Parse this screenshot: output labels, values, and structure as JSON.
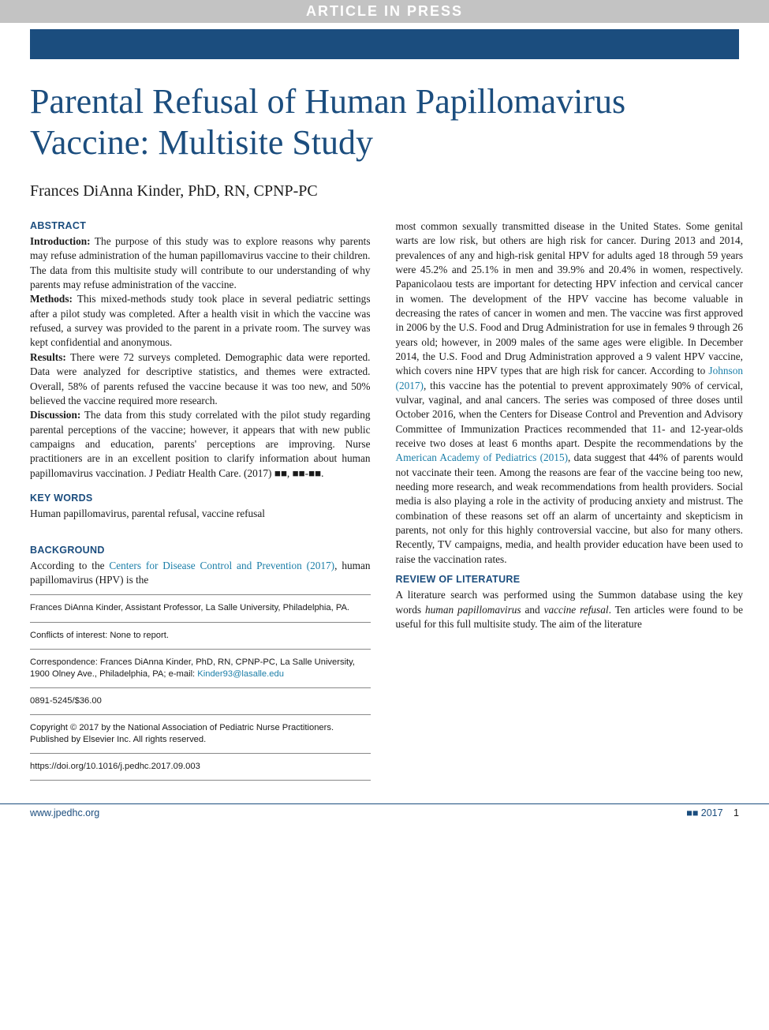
{
  "banner": "ARTICLE IN PRESS",
  "title": "Parental Refusal of Human Papillomavirus Vaccine: Multisite Study",
  "author": "Frances DiAnna Kinder, PhD, RN, CPNP-PC",
  "abstract": {
    "heading": "ABSTRACT",
    "intro_label": "Introduction:",
    "intro": "The purpose of this study was to explore reasons why parents may refuse administration of the human papillomavirus vaccine to their children. The data from this multisite study will contribute to our understanding of why parents may refuse administration of the vaccine.",
    "methods_label": "Methods:",
    "methods": "This mixed-methods study took place in several pediatric settings after a pilot study was completed. After a health visit in which the vaccine was refused, a survey was provided to the parent in a private room. The survey was kept confidential and anonymous.",
    "results_label": "Results:",
    "results": "There were 72 surveys completed. Demographic data were reported. Data were analyzed for descriptive statistics, and themes were extracted. Overall, 58% of parents refused the vaccine because it was too new, and 50% believed the vaccine required more research.",
    "discussion_label": "Discussion:",
    "discussion": "The data from this study correlated with the pilot study regarding parental perceptions of the vaccine; however, it appears that with new public campaigns and education, parents' perceptions are improving. Nurse practitioners are in an excellent position to clarify information about human papillomavirus vaccination. J Pediatr Health Care. (2017) ■■, ■■-■■."
  },
  "keywords": {
    "heading": "KEY WORDS",
    "text": "Human papillomavirus, parental refusal, vaccine refusal"
  },
  "background": {
    "heading": "BACKGROUND",
    "pre": "According to the ",
    "link1": "Centers for Disease Control and Prevention (2017)",
    "post1": ", human papillomavirus (HPV) is the",
    "body_right": "most common sexually transmitted disease in the United States. Some genital warts are low risk, but others are high risk for cancer. During 2013 and 2014, prevalences of any and high-risk genital HPV for adults aged 18 through 59 years were 45.2% and 25.1% in men and 39.9% and 20.4% in women, respectively. Papanicolaou tests are important for detecting HPV infection and cervical cancer in women. The development of the HPV vaccine has become valuable in decreasing the rates of cancer in women and men. The vaccine was first approved in 2006 by the U.S. Food and Drug Administration for use in females 9 through 26 years old; however, in 2009 males of the same ages were eligible. In December 2014, the U.S. Food and Drug Administration approved a 9 valent HPV vaccine, which covers nine HPV types that are high risk for cancer. According to ",
    "link_johnson": "Johnson (2017)",
    "body_right_2": ", this vaccine has the potential to prevent approximately 90% of cervical, vulvar, vaginal, and anal cancers. The series was composed of three doses until October 2016, when the Centers for Disease Control and Prevention and Advisory Committee of Immunization Practices recommended that 11- and 12-year-olds receive two doses at least 6 months apart. Despite the recommendations by the ",
    "link_aap": "American Academy of Pediatrics (2015)",
    "body_right_3": ", data suggest that 44% of parents would not vaccinate their teen. Among the reasons are fear of the vaccine being too new, needing more research, and weak recommendations from health providers. Social media is also playing a role in the activity of producing anxiety and mistrust. The combination of these reasons set off an alarm of uncertainty and skepticism in parents, not only for this highly controversial vaccine, but also for many others. Recently, TV campaigns, media, and health provider education have been used to raise the vaccination rates."
  },
  "review": {
    "heading": "REVIEW OF LITERATURE",
    "text_pre": "A literature search was performed using the Summon database using the key words ",
    "term1": "human papillomavirus",
    "mid": " and ",
    "term2": "vaccine refusal",
    "text_post": ". Ten articles were found to be useful for this full multisite study. The aim of the literature"
  },
  "footer_notes": {
    "affil": "Frances DiAnna Kinder, Assistant Professor, La Salle University, Philadelphia, PA.",
    "coi": "Conflicts of interest: None to report.",
    "corr_pre": "Correspondence: Frances DiAnna Kinder, PhD, RN, CPNP-PC, La Salle University, 1900 Olney Ave., Philadelphia, PA; e-mail: ",
    "corr_email": "Kinder93@lasalle.edu",
    "issn": "0891-5245/$36.00",
    "copyright": "Copyright © 2017 by the National Association of Pediatric Nurse Practitioners. Published by Elsevier Inc. All rights reserved.",
    "doi": "https://doi.org/10.1016/j.pedhc.2017.09.003"
  },
  "page_footer": {
    "site": "www.jpedhc.org",
    "issue": "■■ 2017",
    "page": "1"
  },
  "colors": {
    "brand": "#1b4d7e",
    "banner_bg": "#c3c3c3",
    "link": "#1b7ea8",
    "text": "#1a1a1a"
  }
}
